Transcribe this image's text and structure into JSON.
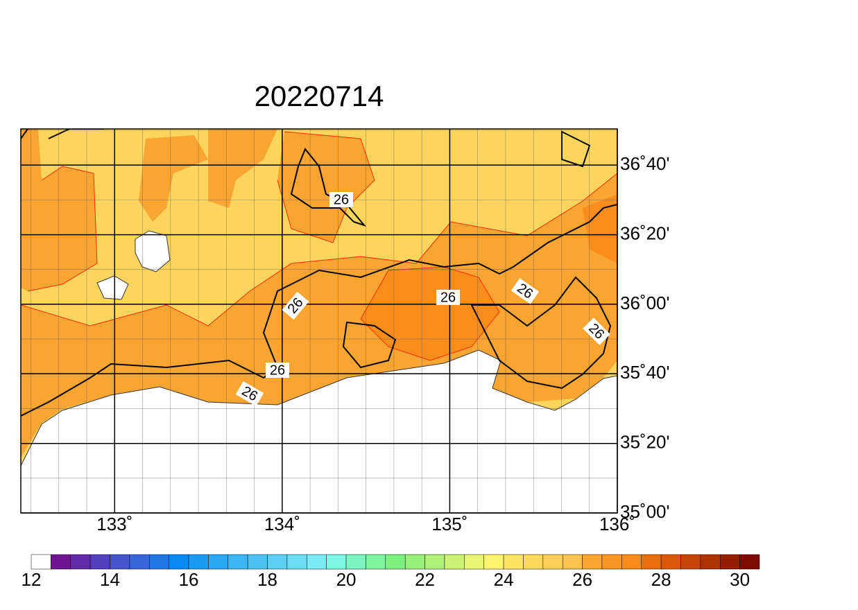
{
  "map": {
    "title": "20220714",
    "xlim": [
      132.44,
      136
    ],
    "ylim": [
      35,
      36.84
    ],
    "xticks": [
      {
        "value": 133,
        "label": "133˚"
      },
      {
        "value": 134,
        "label": "134˚"
      },
      {
        "value": 135,
        "label": "135˚"
      },
      {
        "value": 136,
        "label": "136˚"
      }
    ],
    "yticks": [
      {
        "value": 35,
        "label": "35˚00'"
      },
      {
        "value": 35.333,
        "label": "35˚20'"
      },
      {
        "value": 35.667,
        "label": "35˚40'"
      },
      {
        "value": 36,
        "label": "36˚00'"
      },
      {
        "value": 36.333,
        "label": "36˚20'"
      },
      {
        "value": 36.667,
        "label": "36˚40'"
      }
    ],
    "contour_labels": [
      "26",
      "26",
      "26",
      "26",
      "26",
      "26",
      "26"
    ],
    "colorbar": {
      "ticks": [
        12,
        14,
        16,
        18,
        20,
        22,
        24,
        26,
        28,
        30
      ],
      "lim": [
        12,
        30.5
      ],
      "colors": [
        "#ffffff",
        "#6f1591",
        "#5f2aa8",
        "#523fbb",
        "#4655cc",
        "#3766d8",
        "#2377e5",
        "#0a8af2",
        "#1b9af2",
        "#2ca8f2",
        "#3cb5f2",
        "#4dc2f2",
        "#5ccff2",
        "#6bdcf2",
        "#7beaf2",
        "#7ef5e0",
        "#7ef5c0",
        "#7ef5a0",
        "#7ef080",
        "#96f07a",
        "#b0f078",
        "#cbf276",
        "#e6f574",
        "#fff470",
        "#fde462",
        "#fdd85c",
        "#fccf5a",
        "#fbc352",
        "#f9a532",
        "#f99628",
        "#f98a1c",
        "#e96e10",
        "#d9580a",
        "#c54606",
        "#ad3204",
        "#951e02",
        "#7c0a00"
      ]
    }
  }
}
